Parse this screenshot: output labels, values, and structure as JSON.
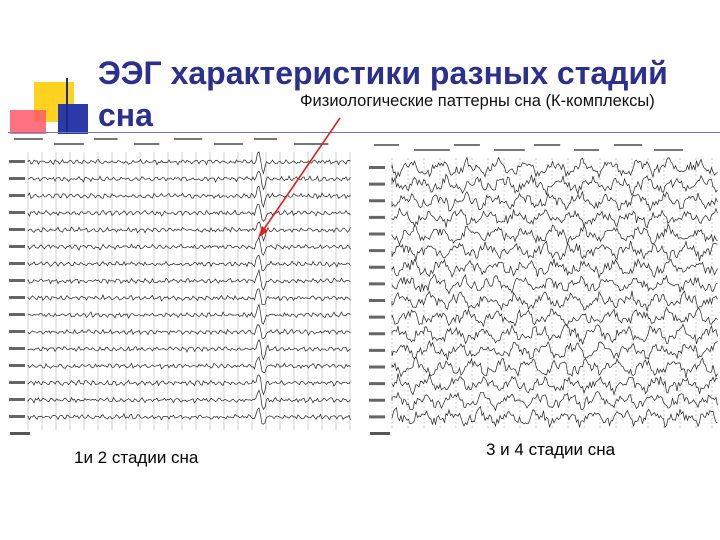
{
  "slide": {
    "title": "ЭЭГ характеристики разных стадий сна",
    "subtitle": "Физиологические паттерны сна (К-комплексы)",
    "caption_left": "1и 2 стадии сна",
    "caption_right": "3 и 4 стадии сна",
    "colors": {
      "title": "#2b2f8f",
      "arrow": "#e0201e",
      "deco_yellow": "#ffd21f",
      "deco_red": "#ff5a6a",
      "deco_blue": "#2a3aa8"
    },
    "icons": [
      "eeg-trace-stage-1-2",
      "eeg-trace-stage-3-4",
      "k-complex-arrow"
    ]
  }
}
